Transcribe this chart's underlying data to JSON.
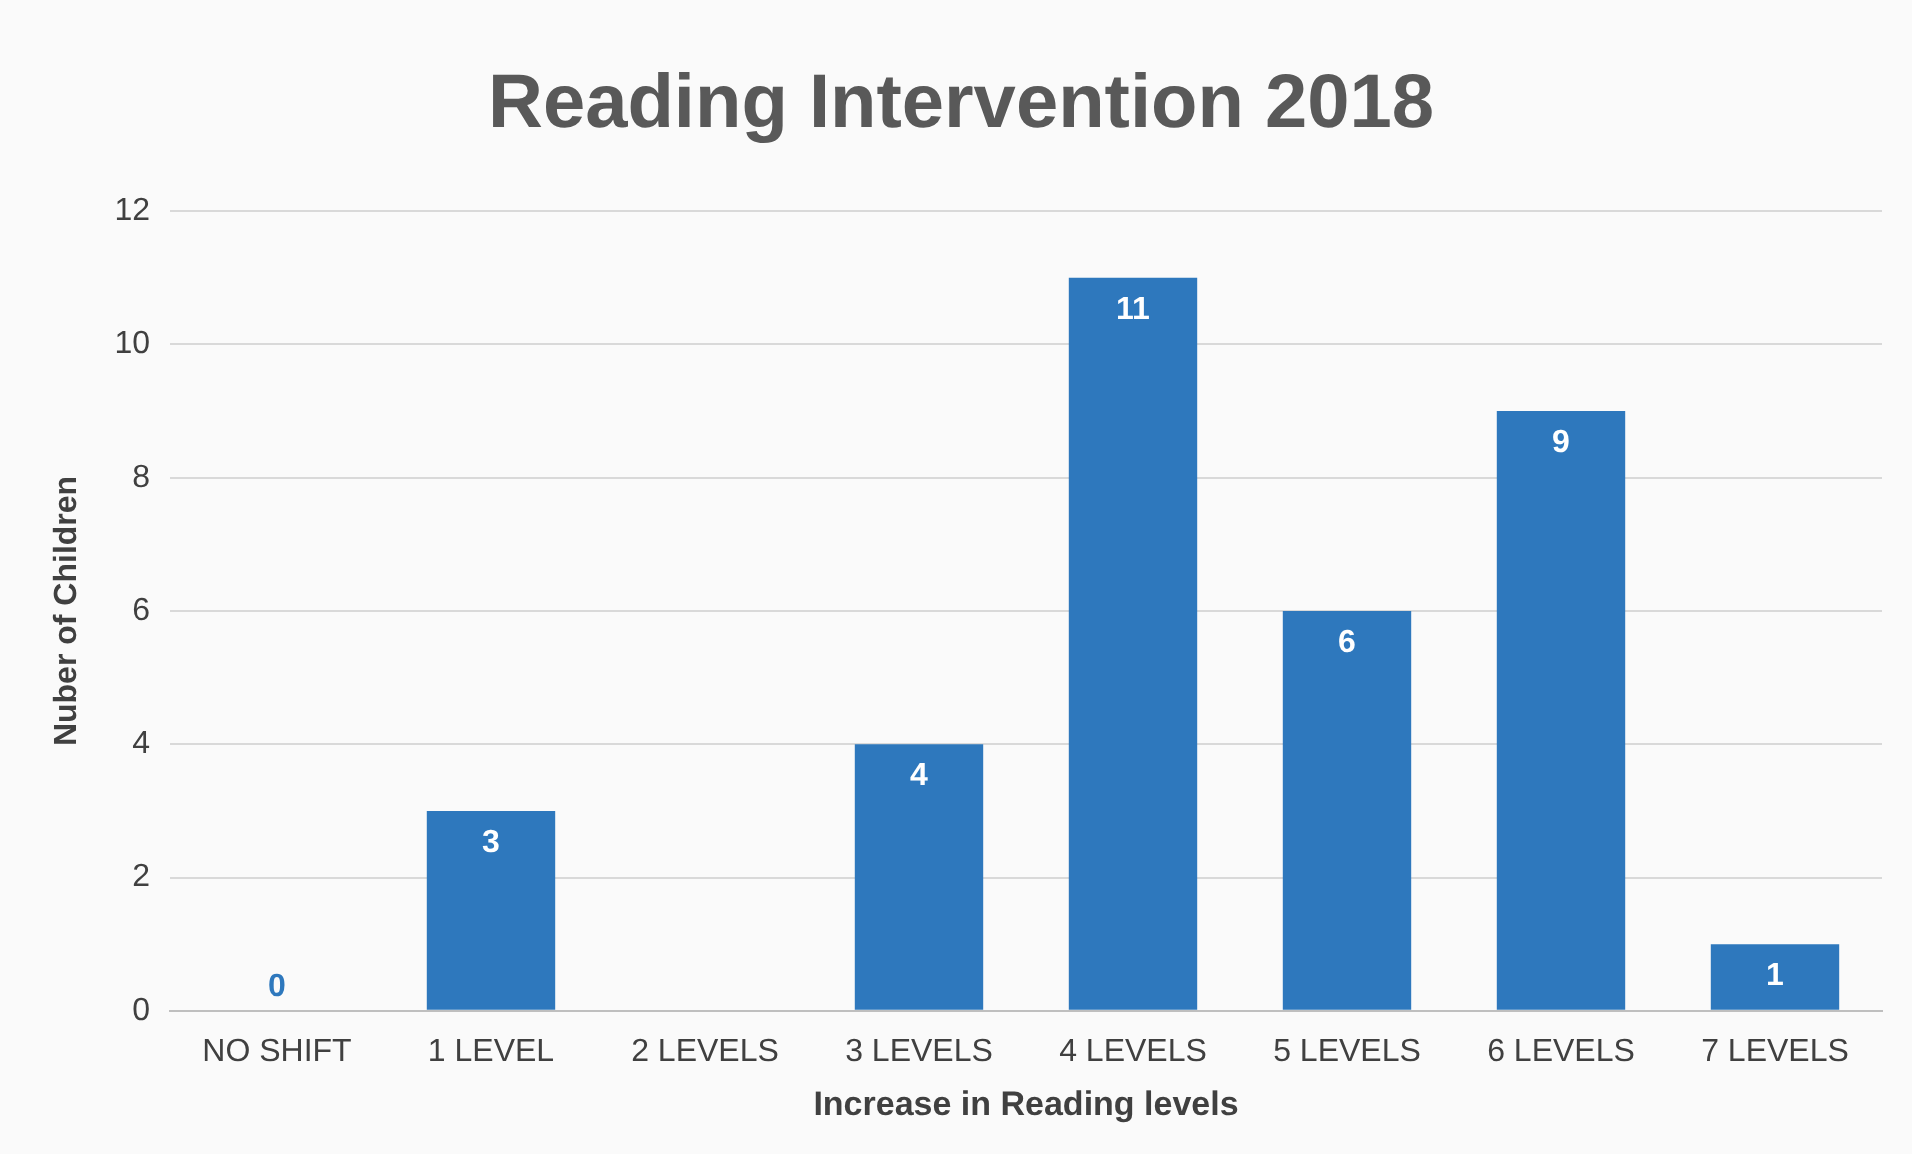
{
  "chart_data": {
    "type": "bar",
    "title": "Reading Intervention 2018",
    "xlabel": "Increase in Reading levels",
    "ylabel": "Nuber of Children",
    "categories": [
      "NO SHIFT",
      "1 LEVEL",
      "2 LEVELS",
      "3 LEVELS",
      "4 LEVELS",
      "5 LEVELS",
      "6 LEVELS",
      "7 LEVELS"
    ],
    "values": [
      0,
      3,
      0,
      4,
      11,
      6,
      9,
      1
    ],
    "value_labels": [
      "0",
      "3",
      null,
      "4",
      "11",
      "6",
      "9",
      "1"
    ],
    "color": "#2e78bd",
    "ylim": [
      0,
      12
    ],
    "yticks": [
      0,
      2,
      4,
      6,
      8,
      10,
      12
    ],
    "grid": "y",
    "legend": false
  }
}
